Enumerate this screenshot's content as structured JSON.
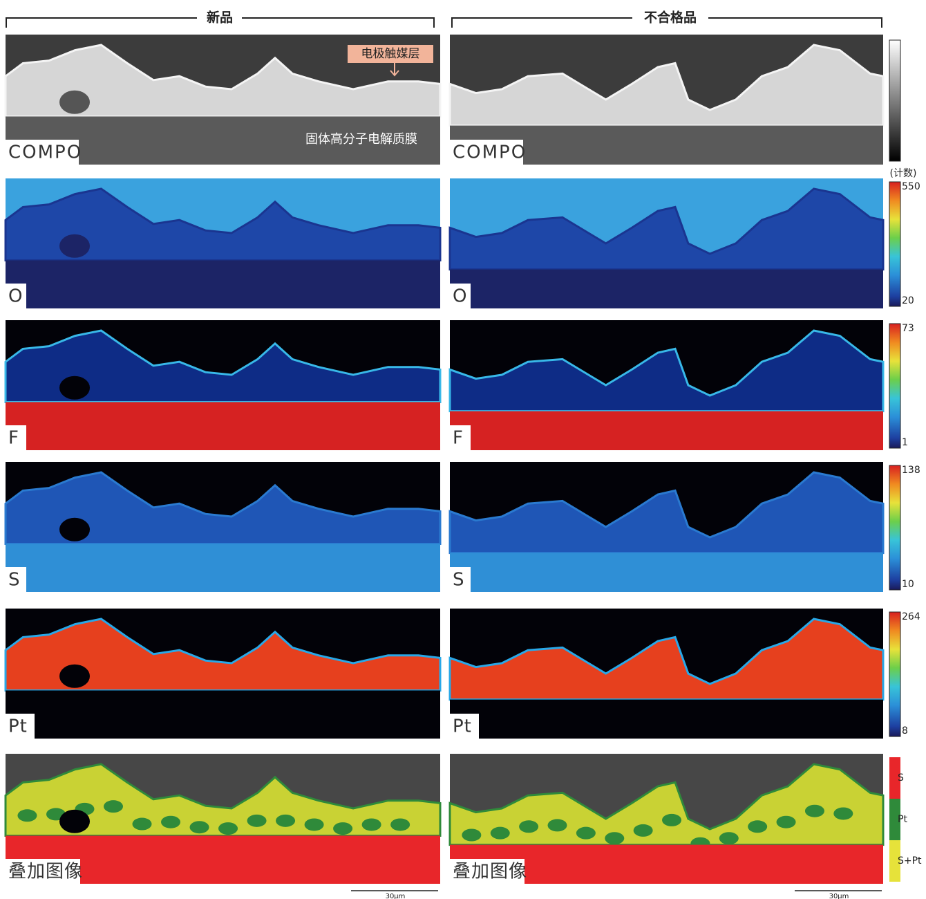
{
  "columns": [
    {
      "title": "新品"
    },
    {
      "title": "不合格品"
    }
  ],
  "row_labels": [
    "COMPO",
    "O",
    "F",
    "S",
    "Pt",
    "叠加图像"
  ],
  "annotations": {
    "catalyst_layer": "电极触媒层",
    "membrane": "固体高分子电解质膜"
  },
  "colorbars": [
    {
      "kind": "gray"
    },
    {
      "kind": "jet",
      "unit": "(计数)",
      "max": 550,
      "min": 20
    },
    {
      "kind": "jet",
      "max": 73,
      "min": 1
    },
    {
      "kind": "jet",
      "max": 138,
      "min": 10
    },
    {
      "kind": "jet",
      "max": 264,
      "min": 8
    },
    {
      "kind": "legend",
      "items": [
        {
          "label": "S",
          "color": "#e8262a"
        },
        {
          "label": "Pt",
          "color": "#2f8a3a"
        },
        {
          "label": "S+Pt",
          "color": "#e6e23a"
        }
      ]
    }
  ],
  "scale_bars": [
    "30μm",
    "30μm"
  ]
}
